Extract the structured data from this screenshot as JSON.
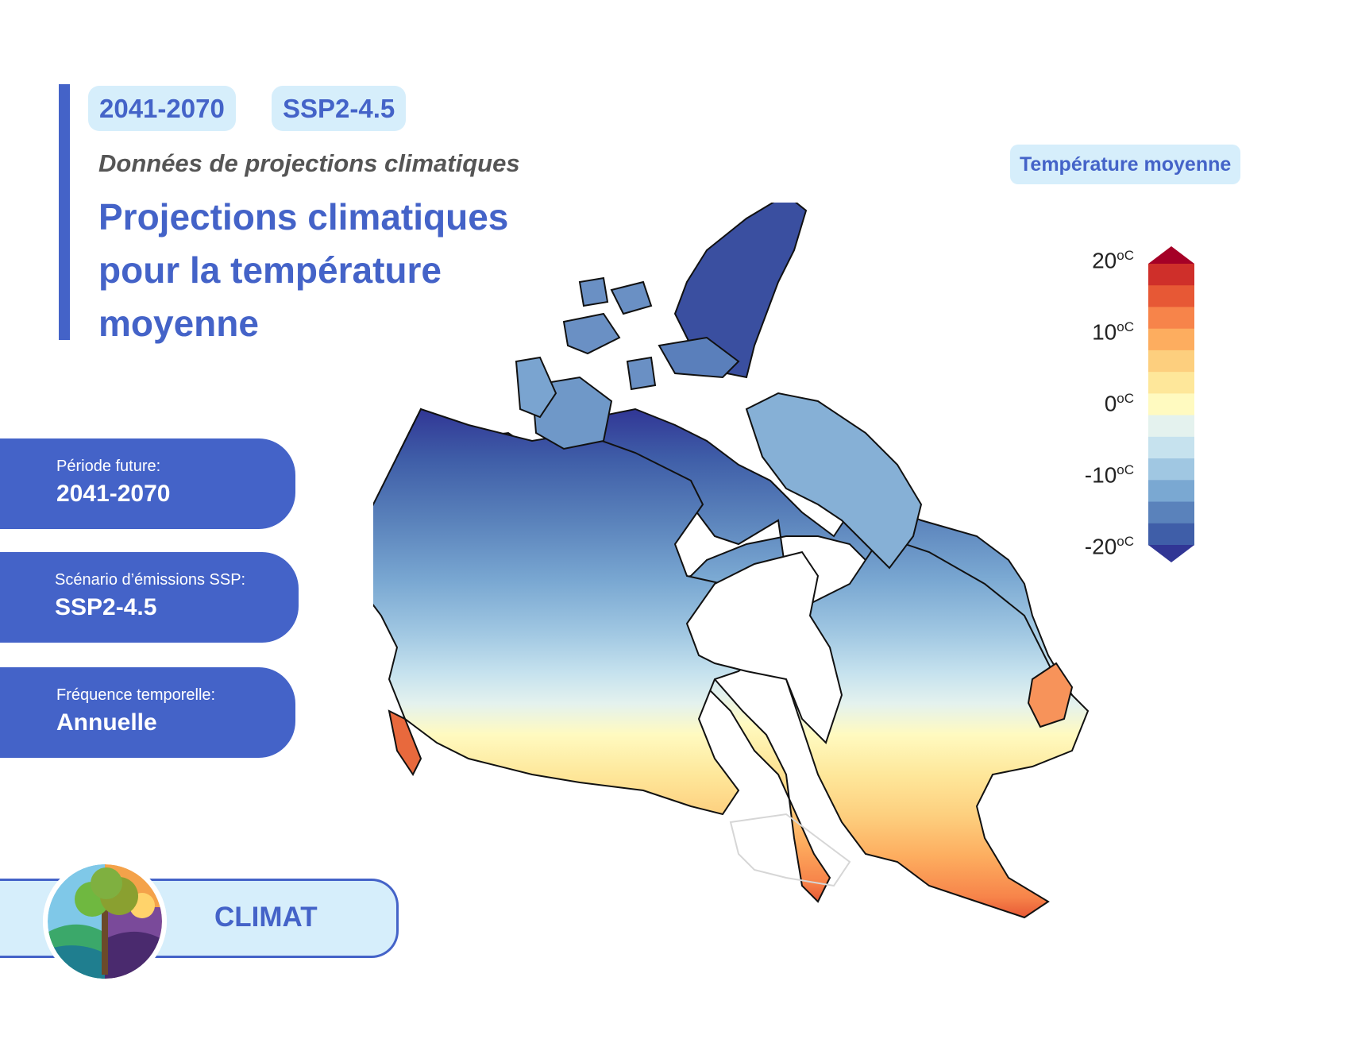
{
  "header": {
    "period_tag": "2041-2070",
    "scenario_tag": "SSP2-4.5",
    "subtitle": "Données de projections climatiques",
    "title": "Projections climatiques pour la température moyenne"
  },
  "info_cards": [
    {
      "label": "Période future:",
      "value": "2041-2070"
    },
    {
      "label": "Scénario d’émissions SSP:",
      "value": "SSP2-4.5"
    },
    {
      "label": "Fréquence temporelle:",
      "value": "Annuelle"
    }
  ],
  "theme": {
    "label": "CLIMAT"
  },
  "legend": {
    "title": "Température moyenne",
    "ticks": [
      {
        "value": "20",
        "unit": "oC"
      },
      {
        "value": "10",
        "unit": "oC"
      },
      {
        "value": "0",
        "unit": "oC"
      },
      {
        "value": "-10",
        "unit": "oC"
      },
      {
        "value": "-20",
        "unit": "oC"
      }
    ],
    "range": [
      -20,
      20
    ],
    "colors": [
      "#313695",
      "#3f5ea8",
      "#5a82bb",
      "#7aa8d2",
      "#a0c7e2",
      "#c6e2ee",
      "#e4f2ee",
      "#fffac0",
      "#fee79a",
      "#fdcf7e",
      "#fdad5f",
      "#f7844a",
      "#e75835",
      "#cf2f2a",
      "#a50026"
    ]
  },
  "colors": {
    "accent": "#4463c8",
    "light_accent": "#d6eefb"
  }
}
